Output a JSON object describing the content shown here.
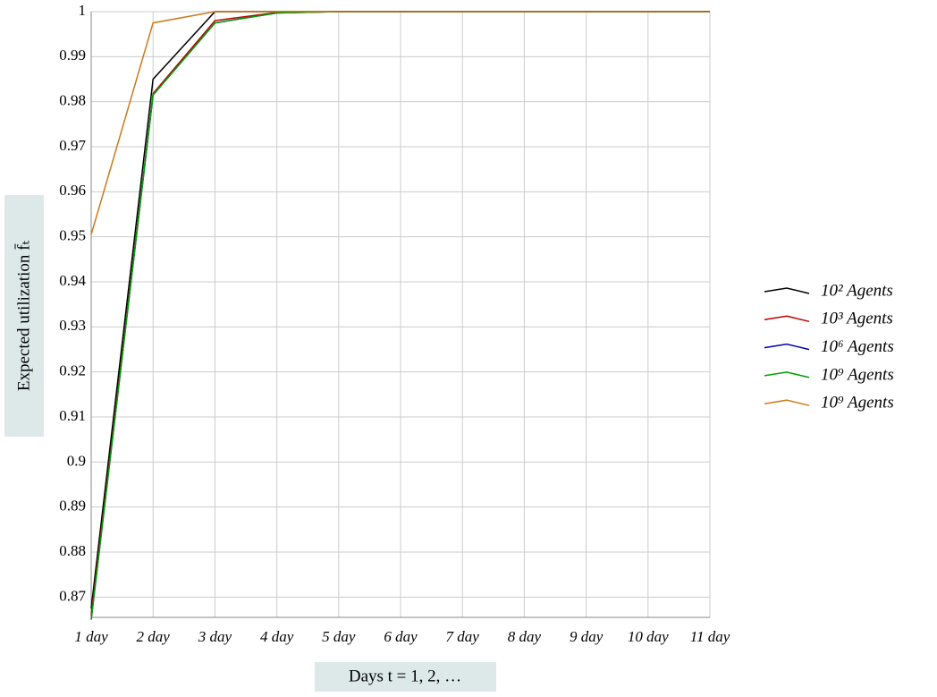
{
  "chart_data": {
    "type": "line",
    "x_label": "Days t = 1, 2, …",
    "y_label": "Expected utilization f̄ₜ",
    "categories": [
      "1 day",
      "2 day",
      "3 day",
      "4 day",
      "5 day",
      "6 day",
      "7 day",
      "8 day",
      "9 day",
      "10 day",
      "11 day"
    ],
    "series": [
      {
        "name": "10² Agents",
        "color": "#000000",
        "values": [
          0.8675,
          0.985,
          1,
          1,
          1,
          1,
          1,
          1,
          1,
          1,
          1
        ]
      },
      {
        "name": "10³ Agents",
        "color": "#c00000",
        "values": [
          0.866,
          0.9818,
          0.998,
          0.9998,
          1,
          1,
          1,
          1,
          1,
          1,
          1
        ]
      },
      {
        "name": "10⁶ Agents",
        "color": "#0000b0",
        "values": [
          0.865,
          0.9815,
          0.9975,
          0.9997,
          1,
          1,
          1,
          1,
          1,
          1,
          1
        ]
      },
      {
        "name": "10⁹ Agents",
        "color": "#00a000",
        "values": [
          0.865,
          0.9815,
          0.9975,
          0.9997,
          1,
          1,
          1,
          1,
          1,
          1,
          1
        ]
      },
      {
        "name": "10⁹ Agents",
        "color": "#cc7a1a",
        "values": [
          0.9505,
          0.9975,
          1,
          1,
          1,
          1,
          1,
          1,
          1,
          1,
          1
        ]
      }
    ],
    "ylim": [
      0.8655,
      1
    ],
    "yticks": [
      0.87,
      0.88,
      0.89,
      0.9,
      0.91,
      0.92,
      0.93,
      0.94,
      0.95,
      0.96,
      0.97,
      0.98,
      0.99,
      1
    ],
    "grid": true,
    "legend": "right"
  }
}
